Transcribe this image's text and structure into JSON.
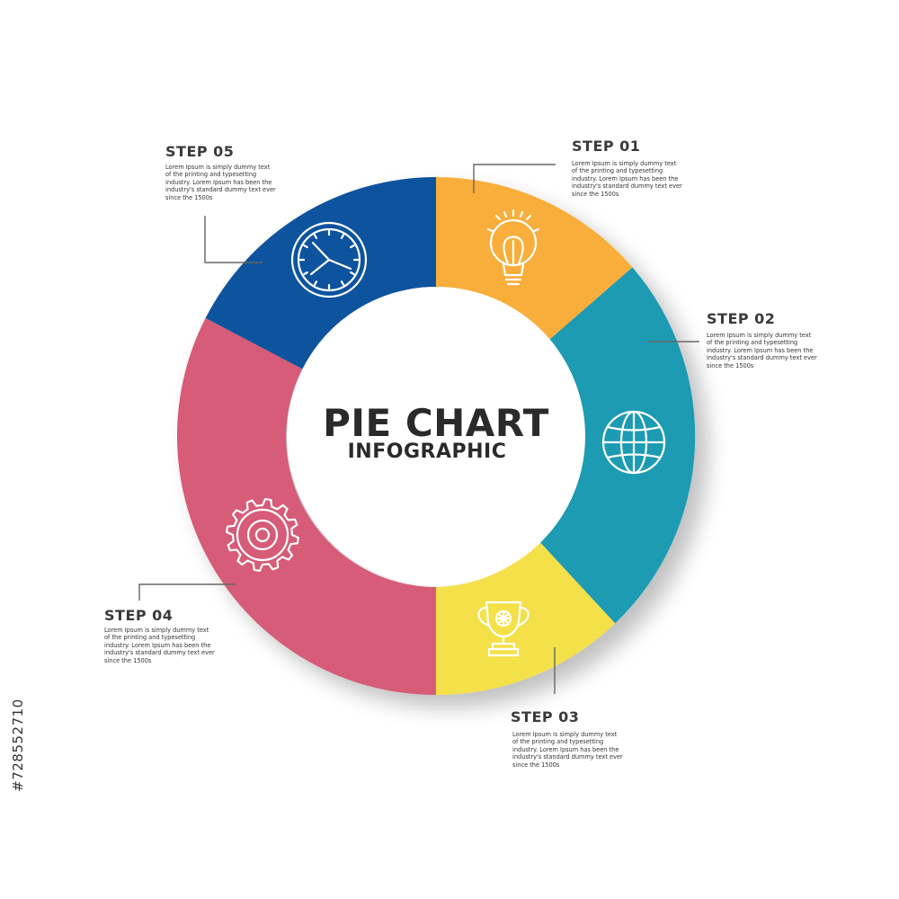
{
  "title": "PIE CHART",
  "subtitle": "INFOGRAPHIC",
  "side_text": "#728552710",
  "colors": {
    "step1": "#F9AE3B",
    "step2": "#1E9BB3",
    "step3": "#F4E049",
    "step4": "#D65C78",
    "step5": "#0B529E"
  },
  "steps": [
    {
      "title": "STEP 01",
      "text": "Lorem Ipsum is simply dummy text\nof the printing and typesetting\nindustry. Lorem Ipsum has been the\nindustry's standard dummy text ever\nsince the 1500s",
      "icon": "lightbulb-icon"
    },
    {
      "title": "STEP 02",
      "text": "Lorem Ipsum is simply dummy text\nof the printing and typesetting\nindustry. Lorem Ipsum has been the\nindustry's standard dummy text ever\nsince the 1500s",
      "icon": "globe-icon"
    },
    {
      "title": "STEP 03",
      "text": "Lorem Ipsum is simply dummy text\nof the printing and typesetting\nindustry. Lorem Ipsum has been the\nindustry's standard dummy text ever\nsince the 1500s",
      "icon": "trophy-icon"
    },
    {
      "title": "STEP 04",
      "text": "Lorem Ipsum is simply dummy text\nof the printing and typesetting\nindustry. Lorem Ipsum has been the\nindustry's standard dummy text ever\nsince the 1500s",
      "icon": "gear-icon"
    },
    {
      "title": "STEP 05",
      "text": "Lorem Ipsum is simply dummy text\nof the printing and typesetting\nindustry. Lorem Ipsum has been the\nindustry's standard dummy text ever\nsince the 1500s",
      "icon": "clock-icon"
    }
  ]
}
